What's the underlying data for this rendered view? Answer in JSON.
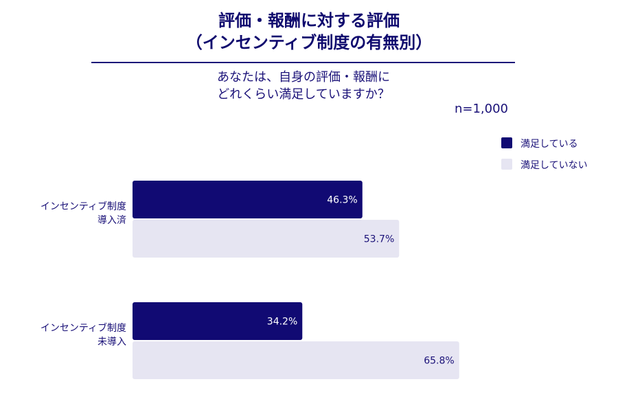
{
  "title_line1": "評価・報酬に対する評価",
  "title_line2": "（インセンティブ制度の有無別）",
  "subtitle_line1": "あなたは、自身の評価・報酬に",
  "subtitle_line2": "どれくらい満足していますか？",
  "sample_size": "n=1,000",
  "colors": {
    "satisfied": "#110a73",
    "not_satisfied": "#e6e5f2",
    "text": "#1a1178"
  },
  "chart_data": {
    "type": "bar",
    "orientation": "horizontal",
    "categories": [
      [
        "インセンティブ制度",
        "導入済"
      ],
      [
        "インセンティブ制度",
        "未導入"
      ]
    ],
    "series": [
      {
        "name": "満足している",
        "values": [
          46.3,
          34.2
        ],
        "labels": [
          "46.3%",
          "34.2%"
        ]
      },
      {
        "name": "満足していない",
        "values": [
          53.7,
          65.8
        ],
        "labels": [
          "53.7%",
          "65.8%"
        ]
      }
    ],
    "xlim": [
      0,
      100
    ],
    "unit": "%",
    "grid": false,
    "legend_position": "top-right"
  }
}
